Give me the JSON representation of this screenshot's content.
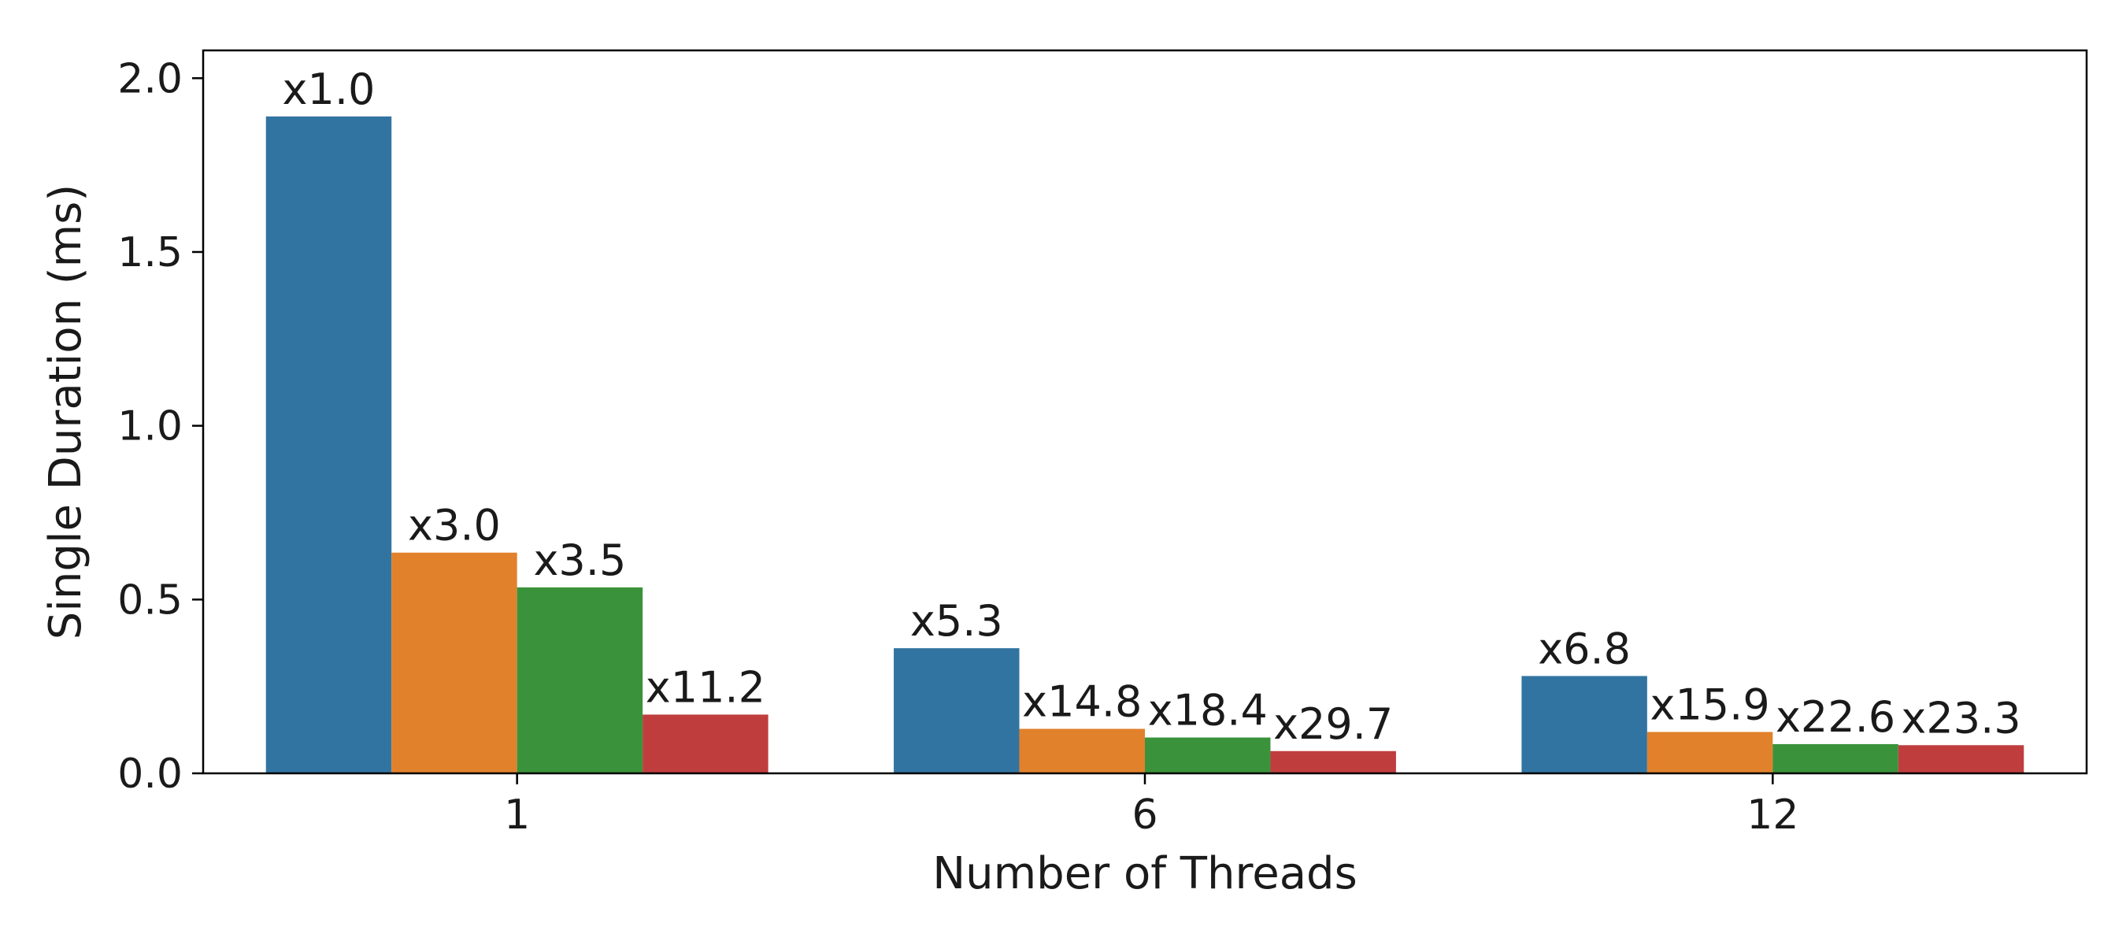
{
  "chart_data": {
    "type": "bar",
    "title": "",
    "xlabel": "Number of Threads",
    "ylabel": "Single Duration (ms)",
    "categories": [
      "1",
      "6",
      "12"
    ],
    "ylim": [
      0,
      2.08
    ],
    "yticks": [
      0.0,
      0.5,
      1.0,
      1.5,
      2.0
    ],
    "ytick_labels": [
      "0.0",
      "0.5",
      "1.0",
      "1.5",
      "2.0"
    ],
    "grid": false,
    "legend": "none",
    "series": [
      {
        "color": "#3274a1",
        "values": [
          1.89,
          0.36,
          0.28
        ],
        "labels": [
          "x1.0",
          "x5.3",
          "x6.8"
        ]
      },
      {
        "color": "#e1812c",
        "values": [
          0.635,
          0.128,
          0.119
        ],
        "labels": [
          "x3.0",
          "x14.8",
          "x15.9"
        ]
      },
      {
        "color": "#3a923a",
        "values": [
          0.535,
          0.103,
          0.084
        ],
        "labels": [
          "x3.5",
          "x18.4",
          "x22.6"
        ]
      },
      {
        "color": "#c03d3e",
        "values": [
          0.169,
          0.064,
          0.081
        ],
        "labels": [
          "x11.2",
          "x29.7",
          "x23.3"
        ]
      }
    ]
  }
}
